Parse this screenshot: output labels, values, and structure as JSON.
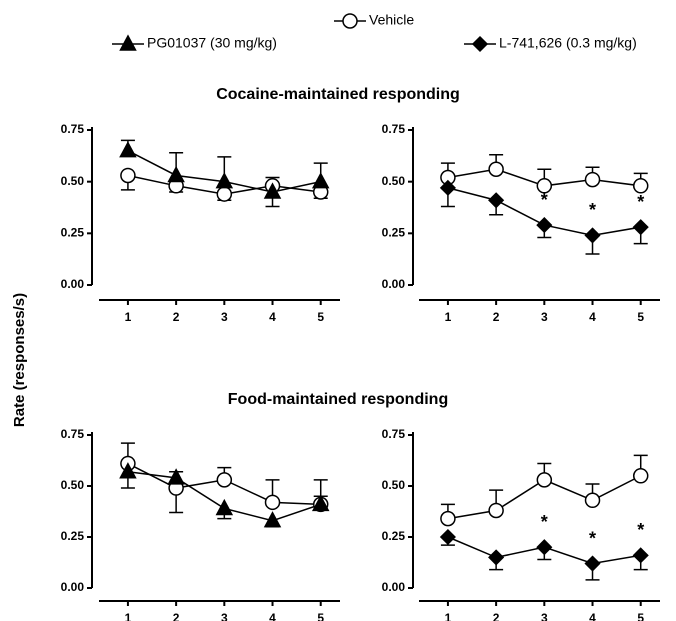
{
  "ylabel": "Rate (responses/s)",
  "chart_data": [
    {
      "type": "line",
      "title": "Cocaine-maintained responding",
      "x": [
        1,
        2,
        3,
        4,
        5
      ],
      "xlim": [
        0.4,
        5.4
      ],
      "xticks": [
        1,
        2,
        3,
        4,
        5
      ],
      "ylim": [
        0,
        0.75
      ],
      "yticks": [
        {
          "value": 0,
          "label": "0.00"
        },
        {
          "value": 0.25,
          "label": "0.25"
        },
        {
          "value": 0.5,
          "label": "0.50"
        },
        {
          "value": 0.75,
          "label": "0.75"
        }
      ],
      "series": [
        {
          "name": "Vehicle",
          "marker": "circle",
          "color": "#000000",
          "values": [
            0.53,
            0.48,
            0.44,
            0.48,
            0.45
          ],
          "errors": [
            0.07,
            0.03,
            0.03,
            0.04,
            0.03
          ]
        },
        {
          "name": "PG01037 (30 mg/kg)",
          "marker": "triangle",
          "color": "#000000",
          "values": [
            0.65,
            0.53,
            0.5,
            0.45,
            0.5
          ],
          "errors": [
            0.05,
            0.11,
            0.12,
            0.07,
            0.09
          ]
        }
      ]
    },
    {
      "type": "line",
      "x": [
        1,
        2,
        3,
        4,
        5
      ],
      "xlim": [
        0.4,
        5.4
      ],
      "xticks": [
        1,
        2,
        3,
        4,
        5
      ],
      "ylim": [
        0,
        0.75
      ],
      "yticks": [
        {
          "value": 0,
          "label": "0.00"
        },
        {
          "value": 0.25,
          "label": "0.25"
        },
        {
          "value": 0.5,
          "label": "0.50"
        },
        {
          "value": 0.75,
          "label": "0.75"
        }
      ],
      "series": [
        {
          "marker": "circle",
          "color": "#000000",
          "values": [
            0.52,
            0.56,
            0.48,
            0.51,
            0.48
          ],
          "errors": [
            0.07,
            0.07,
            0.08,
            0.06,
            0.06
          ]
        },
        {
          "name": "L-741,626 (0.3 mg/kg)",
          "marker": "diamond",
          "color": "#000000",
          "values": [
            0.47,
            0.41,
            0.29,
            0.24,
            0.28
          ],
          "errors": [
            0.09,
            0.07,
            0.06,
            0.09,
            0.08
          ]
        }
      ],
      "annotations": [
        {
          "x": 3,
          "text": "*"
        },
        {
          "x": 4,
          "text": "*"
        },
        {
          "x": 5,
          "text": "*"
        }
      ]
    },
    {
      "type": "line",
      "title": "Food-maintained responding",
      "x": [
        1,
        2,
        3,
        4,
        5
      ],
      "xlim": [
        0.4,
        5.4
      ],
      "xticks": [
        1,
        2,
        3,
        4,
        5
      ],
      "ylim": [
        0,
        0.75
      ],
      "yticks": [
        {
          "value": 0,
          "label": "0.00"
        },
        {
          "value": 0.25,
          "label": "0.25"
        },
        {
          "value": 0.5,
          "label": "0.50"
        },
        {
          "value": 0.75,
          "label": "0.75"
        }
      ],
      "series": [
        {
          "marker": "circle",
          "color": "#000000",
          "values": [
            0.61,
            0.49,
            0.53,
            0.42,
            0.41
          ],
          "errors": [
            0.1,
            0.12,
            0.06,
            0.11,
            0.12
          ]
        },
        {
          "marker": "triangle",
          "color": "#000000",
          "values": [
            0.57,
            0.54,
            0.39,
            0.33,
            0.41
          ],
          "errors": [
            0.08,
            0.03,
            0.05,
            0.03,
            0.04
          ]
        }
      ]
    },
    {
      "type": "line",
      "x": [
        1,
        2,
        3,
        4,
        5
      ],
      "xlim": [
        0.4,
        5.4
      ],
      "xticks": [
        1,
        2,
        3,
        4,
        5
      ],
      "ylim": [
        0,
        0.75
      ],
      "yticks": [
        {
          "value": 0,
          "label": "0.00"
        },
        {
          "value": 0.25,
          "label": "0.25"
        },
        {
          "value": 0.5,
          "label": "0.50"
        },
        {
          "value": 0.75,
          "label": "0.75"
        }
      ],
      "series": [
        {
          "marker": "circle",
          "color": "#000000",
          "values": [
            0.34,
            0.38,
            0.53,
            0.43,
            0.55
          ],
          "errors": [
            0.07,
            0.1,
            0.08,
            0.08,
            0.1
          ]
        },
        {
          "marker": "diamond",
          "color": "#000000",
          "values": [
            0.25,
            0.15,
            0.2,
            0.12,
            0.16
          ],
          "errors": [
            0.04,
            0.06,
            0.06,
            0.08,
            0.07
          ]
        }
      ],
      "annotations": [
        {
          "x": 3,
          "text": "*"
        },
        {
          "x": 4,
          "text": "*"
        },
        {
          "x": 5,
          "text": "*"
        }
      ]
    }
  ]
}
